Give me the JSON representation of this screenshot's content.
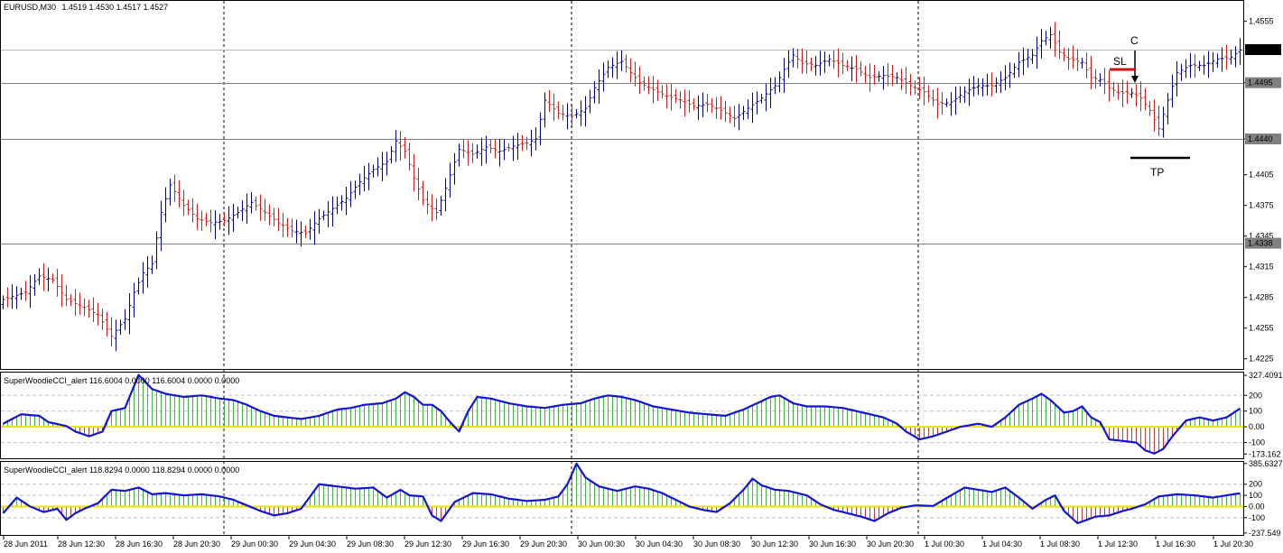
{
  "header": {
    "symbol_timeframe": "EURUSD,M30",
    "ohlc": "1.4519 1.4530 1.4517 1.4527"
  },
  "colors": {
    "bull_bar": "#000080",
    "bear_bar": "#cc2020",
    "grid_line": "#808080",
    "cci_line": "#1515d0",
    "zero_line": "#e6e600",
    "hist_up": "#22aa22",
    "hist_down": "#aa2020",
    "price_tag": "#000000",
    "level_tag": "#808080",
    "sl_mark": "#d01010"
  },
  "annotations": {
    "c_label": "C",
    "sl_label": "SL",
    "tp_label": "TP"
  },
  "chart_data": [
    {
      "type": "ohlc",
      "title": "EURUSD,M30",
      "ylim": [
        1.4215,
        1.4575
      ],
      "y_ticks": [
        "1.4555",
        "1.4495",
        "1.4440",
        "1.4405",
        "1.4375",
        "1.4345",
        "1.4315",
        "1.4285",
        "1.4255",
        "1.4225"
      ],
      "current_price": "1.4527",
      "horizontal_levels": [
        "1.4495",
        "1.4440",
        "1.4338"
      ],
      "close_path": [
        [
          0,
          1.4283
        ],
        [
          5,
          1.429
        ],
        [
          8,
          1.4306
        ],
        [
          11,
          1.4302
        ],
        [
          14,
          1.4283
        ],
        [
          18,
          1.4275
        ],
        [
          21,
          1.4268
        ],
        [
          24,
          1.4247
        ],
        [
          27,
          1.4264
        ],
        [
          29,
          1.429
        ],
        [
          31,
          1.4309
        ],
        [
          33,
          1.4318
        ],
        [
          35,
          1.4368
        ],
        [
          37,
          1.4395
        ],
        [
          40,
          1.4375
        ],
        [
          43,
          1.4362
        ],
        [
          46,
          1.4358
        ],
        [
          49,
          1.436
        ],
        [
          52,
          1.4368
        ],
        [
          55,
          1.4378
        ],
        [
          58,
          1.4368
        ],
        [
          61,
          1.4358
        ],
        [
          64,
          1.435
        ],
        [
          67,
          1.4348
        ],
        [
          70,
          1.4362
        ],
        [
          73,
          1.4372
        ],
        [
          76,
          1.4382
        ],
        [
          79,
          1.4398
        ],
        [
          82,
          1.441
        ],
        [
          85,
          1.4418
        ],
        [
          87,
          1.4438
        ],
        [
          89,
          1.4428
        ],
        [
          91,
          1.4402
        ],
        [
          93,
          1.438
        ],
        [
          96,
          1.4368
        ],
        [
          98,
          1.4392
        ],
        [
          101,
          1.443
        ],
        [
          104,
          1.4425
        ],
        [
          107,
          1.4432
        ],
        [
          110,
          1.4428
        ],
        [
          113,
          1.4433
        ],
        [
          116,
          1.4436
        ],
        [
          118,
          1.444
        ],
        [
          120,
          1.4478
        ],
        [
          123,
          1.4465
        ],
        [
          126,
          1.4462
        ],
        [
          129,
          1.447
        ],
        [
          131,
          1.449
        ],
        [
          134,
          1.451
        ],
        [
          137,
          1.4516
        ],
        [
          139,
          1.4505
        ],
        [
          141,
          1.4495
        ],
        [
          144,
          1.4488
        ],
        [
          147,
          1.4482
        ],
        [
          150,
          1.4478
        ],
        [
          153,
          1.4472
        ],
        [
          156,
          1.4474
        ],
        [
          159,
          1.4468
        ],
        [
          162,
          1.446
        ],
        [
          165,
          1.447
        ],
        [
          168,
          1.448
        ],
        [
          171,
          1.4492
        ],
        [
          173,
          1.4508
        ],
        [
          175,
          1.4522
        ],
        [
          177,
          1.4514
        ],
        [
          180,
          1.4512
        ],
        [
          183,
          1.4518
        ],
        [
          186,
          1.4512
        ],
        [
          189,
          1.4508
        ],
        [
          192,
          1.45
        ],
        [
          195,
          1.4502
        ],
        [
          198,
          1.45
        ],
        [
          201,
          1.4492
        ],
        [
          204,
          1.4486
        ],
        [
          207,
          1.4474
        ],
        [
          210,
          1.4476
        ],
        [
          213,
          1.4486
        ],
        [
          216,
          1.4492
        ],
        [
          219,
          1.4492
        ],
        [
          222,
          1.45
        ],
        [
          225,
          1.4515
        ],
        [
          228,
          1.4522
        ],
        [
          230,
          1.4536
        ],
        [
          232,
          1.4542
        ],
        [
          234,
          1.4525
        ],
        [
          236,
          1.4518
        ],
        [
          239,
          1.4515
        ],
        [
          241,
          1.45
        ],
        [
          243,
          1.4498
        ],
        [
          245,
          1.449
        ],
        [
          247,
          1.4485
        ],
        [
          250,
          1.4485
        ],
        [
          252,
          1.448
        ],
        [
          254,
          1.4468
        ],
        [
          256,
          1.445
        ],
        [
          258,
          1.4478
        ],
        [
          260,
          1.4505
        ],
        [
          263,
          1.4512
        ],
        [
          266,
          1.4512
        ],
        [
          269,
          1.4518
        ],
        [
          272,
          1.452
        ],
        [
          274,
          1.4527
        ]
      ]
    },
    {
      "type": "line",
      "title": "SuperWoodieCCI_alert 116.6004 0.0000 116.6004 0.0000 0.0000",
      "ylim": [
        -200,
        345
      ],
      "y_ticks": [
        "327.4091",
        "200",
        "100",
        "0.00",
        "-100",
        "-173.162"
      ],
      "y_tick_values": [
        327.4091,
        200,
        100,
        0,
        -100,
        -173.162
      ],
      "series": [
        {
          "values": [
            [
              0,
              20
            ],
            [
              4,
              80
            ],
            [
              8,
              70
            ],
            [
              10,
              30
            ],
            [
              14,
              5
            ],
            [
              16,
              -30
            ],
            [
              19,
              -60
            ],
            [
              22,
              -30
            ],
            [
              24,
              100
            ],
            [
              27,
              120
            ],
            [
              30,
              330
            ],
            [
              33,
              240
            ],
            [
              36,
              210
            ],
            [
              40,
              190
            ],
            [
              44,
              200
            ],
            [
              48,
              180
            ],
            [
              51,
              170
            ],
            [
              54,
              140
            ],
            [
              57,
              100
            ],
            [
              60,
              70
            ],
            [
              63,
              60
            ],
            [
              66,
              50
            ],
            [
              70,
              70
            ],
            [
              74,
              110
            ],
            [
              77,
              120
            ],
            [
              80,
              140
            ],
            [
              84,
              150
            ],
            [
              87,
              180
            ],
            [
              89,
              220
            ],
            [
              91,
              190
            ],
            [
              93,
              140
            ],
            [
              95,
              140
            ],
            [
              97,
              100
            ],
            [
              99,
              30
            ],
            [
              101,
              -30
            ],
            [
              103,
              100
            ],
            [
              105,
              190
            ],
            [
              108,
              180
            ],
            [
              112,
              150
            ],
            [
              116,
              130
            ],
            [
              120,
              120
            ],
            [
              124,
              140
            ],
            [
              128,
              150
            ],
            [
              131,
              180
            ],
            [
              134,
              200
            ],
            [
              137,
              190
            ],
            [
              140,
              170
            ],
            [
              144,
              130
            ],
            [
              148,
              110
            ],
            [
              152,
              90
            ],
            [
              156,
              80
            ],
            [
              160,
              70
            ],
            [
              164,
              110
            ],
            [
              167,
              150
            ],
            [
              170,
              190
            ],
            [
              172,
              200
            ],
            [
              175,
              150
            ],
            [
              178,
              130
            ],
            [
              182,
              130
            ],
            [
              186,
              120
            ],
            [
              189,
              100
            ],
            [
              192,
              80
            ],
            [
              195,
              60
            ],
            [
              198,
              20
            ],
            [
              200,
              -30
            ],
            [
              203,
              -80
            ],
            [
              206,
              -60
            ],
            [
              209,
              -30
            ],
            [
              212,
              0
            ],
            [
              216,
              20
            ],
            [
              219,
              0
            ],
            [
              222,
              60
            ],
            [
              225,
              140
            ],
            [
              228,
              180
            ],
            [
              230,
              210
            ],
            [
              232,
              170
            ],
            [
              235,
              90
            ],
            [
              237,
              100
            ],
            [
              239,
              130
            ],
            [
              241,
              60
            ],
            [
              243,
              30
            ],
            [
              245,
              -80
            ],
            [
              248,
              -90
            ],
            [
              251,
              -100
            ],
            [
              253,
              -150
            ],
            [
              255,
              -170
            ],
            [
              257,
              -140
            ],
            [
              259,
              -60
            ],
            [
              262,
              40
            ],
            [
              265,
              60
            ],
            [
              268,
              40
            ],
            [
              271,
              60
            ],
            [
              274,
              116.6
            ]
          ]
        }
      ]
    },
    {
      "type": "line",
      "title": "SuperWoodieCCI_alert 118.8294 0.0000 118.8294 0.0000 0.0000",
      "ylim": [
        -255,
        400
      ],
      "y_ticks": [
        "385.6327",
        "200",
        "100",
        "0.00",
        "-100",
        "-237.549"
      ],
      "y_tick_values": [
        385.6327,
        200,
        100,
        0,
        -100,
        -237.549
      ],
      "series": [
        {
          "values": [
            [
              0,
              -60
            ],
            [
              3,
              80
            ],
            [
              6,
              0
            ],
            [
              9,
              -50
            ],
            [
              12,
              -20
            ],
            [
              14,
              -120
            ],
            [
              16,
              -60
            ],
            [
              18,
              -20
            ],
            [
              21,
              30
            ],
            [
              24,
              150
            ],
            [
              27,
              140
            ],
            [
              30,
              170
            ],
            [
              33,
              110
            ],
            [
              36,
              120
            ],
            [
              40,
              100
            ],
            [
              44,
              110
            ],
            [
              48,
              90
            ],
            [
              51,
              60
            ],
            [
              54,
              10
            ],
            [
              57,
              -40
            ],
            [
              60,
              -80
            ],
            [
              63,
              -60
            ],
            [
              66,
              -20
            ],
            [
              70,
              200
            ],
            [
              74,
              180
            ],
            [
              78,
              160
            ],
            [
              82,
              170
            ],
            [
              85,
              80
            ],
            [
              88,
              150
            ],
            [
              90,
              100
            ],
            [
              93,
              90
            ],
            [
              95,
              -80
            ],
            [
              97,
              -130
            ],
            [
              100,
              40
            ],
            [
              104,
              120
            ],
            [
              108,
              110
            ],
            [
              112,
              70
            ],
            [
              116,
              50
            ],
            [
              120,
              60
            ],
            [
              123,
              90
            ],
            [
              125,
              200
            ],
            [
              127,
              385
            ],
            [
              129,
              260
            ],
            [
              132,
              180
            ],
            [
              136,
              140
            ],
            [
              140,
              180
            ],
            [
              143,
              160
            ],
            [
              146,
              120
            ],
            [
              149,
              60
            ],
            [
              152,
              0
            ],
            [
              155,
              -30
            ],
            [
              158,
              -50
            ],
            [
              161,
              30
            ],
            [
              164,
              150
            ],
            [
              166,
              250
            ],
            [
              168,
              190
            ],
            [
              171,
              150
            ],
            [
              174,
              140
            ],
            [
              178,
              100
            ],
            [
              181,
              20
            ],
            [
              184,
              -30
            ],
            [
              187,
              -60
            ],
            [
              190,
              -90
            ],
            [
              193,
              -130
            ],
            [
              196,
              -60
            ],
            [
              199,
              -10
            ],
            [
              202,
              10
            ],
            [
              206,
              5
            ],
            [
              210,
              100
            ],
            [
              213,
              170
            ],
            [
              216,
              150
            ],
            [
              219,
              130
            ],
            [
              222,
              170
            ],
            [
              225,
              80
            ],
            [
              228,
              -20
            ],
            [
              231,
              60
            ],
            [
              233,
              100
            ],
            [
              235,
              -40
            ],
            [
              238,
              -150
            ],
            [
              242,
              -90
            ],
            [
              245,
              -80
            ],
            [
              248,
              -40
            ],
            [
              250,
              -20
            ],
            [
              253,
              20
            ],
            [
              256,
              90
            ],
            [
              260,
              110
            ],
            [
              264,
              100
            ],
            [
              268,
              80
            ],
            [
              271,
              100
            ],
            [
              274,
              118.8
            ]
          ]
        }
      ]
    }
  ],
  "x_axis_labels": [
    "28 Jun 2011",
    "28 Jun 12:30",
    "28 Jun 16:30",
    "28 Jun 20:30",
    "29 Jun 00:30",
    "29 Jun 04:30",
    "29 Jun 08:30",
    "29 Jun 12:30",
    "29 Jun 16:30",
    "29 Jun 20:30",
    "30 Jun 00:30",
    "30 Jun 04:30",
    "30 Jun 08:30",
    "30 Jun 12:30",
    "30 Jun 16:30",
    "30 Jun 20:30",
    "1 Jul 00:30",
    "1 Jul 04:30",
    "1 Jul 08:30",
    "1 Jul 12:30",
    "1 Jul 16:30",
    "1 Jul 20:30"
  ]
}
